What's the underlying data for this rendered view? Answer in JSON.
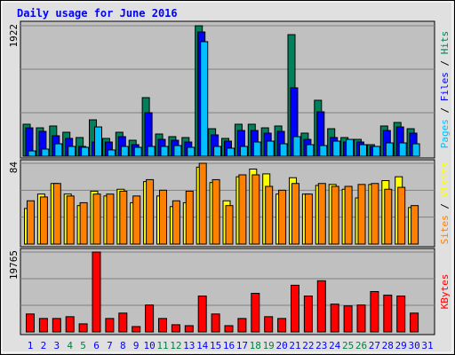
{
  "chart_data": [
    {
      "type": "bar",
      "title": "Daily usage for June 2016",
      "ylim": [
        0,
        1922
      ],
      "yticks": [
        1922
      ],
      "legend_separator": " / ",
      "series": [
        {
          "name": "Pages",
          "color": "#00c0ff",
          "values": [
            78,
            105,
            183,
            144,
            131,
            431,
            92,
            144,
            131,
            144,
            144,
            157,
            131,
            1687,
            144,
            118,
            144,
            209,
            222,
            183,
            288,
            170,
            157,
            222,
            248,
            170,
            144,
            196,
            196,
            183,
            0
          ]
        },
        {
          "name": "Files",
          "color": "#0000ff",
          "values": [
            418,
            366,
            301,
            262,
            144,
            209,
            209,
            288,
            170,
            641,
            248,
            235,
            209,
            1830,
            314,
            222,
            379,
            379,
            340,
            366,
            1007,
            248,
            654,
            275,
            209,
            209,
            144,
            379,
            431,
            340,
            0
          ]
        },
        {
          "name": "Hits",
          "color": "#00805c",
          "values": [
            471,
            418,
            445,
            353,
            275,
            536,
            262,
            353,
            235,
            863,
            327,
            288,
            275,
            1922,
            405,
            262,
            471,
            471,
            418,
            445,
            1791,
            340,
            824,
            405,
            275,
            248,
            170,
            445,
            497,
            405,
            0
          ]
        }
      ]
    },
    {
      "type": "bar",
      "ylim": [
        0,
        84
      ],
      "yticks": [
        84
      ],
      "legend_separator": " / ",
      "series": [
        {
          "name": "Sites",
          "color": "#ff8000",
          "values": [
            45,
            49,
            63,
            50,
            43,
            52,
            52,
            55,
            50,
            67,
            56,
            45,
            55,
            84,
            67,
            40,
            72,
            72,
            60,
            56,
            63,
            52,
            63,
            60,
            60,
            62,
            63,
            57,
            59,
            40,
            0
          ]
        },
        {
          "name": "Visits",
          "color": "#ffff00",
          "values": [
            37,
            52,
            63,
            52,
            40,
            55,
            50,
            57,
            43,
            65,
            50,
            39,
            43,
            80,
            64,
            45,
            70,
            78,
            73,
            52,
            69,
            52,
            61,
            62,
            57,
            48,
            62,
            66,
            70,
            38,
            0
          ]
        }
      ]
    },
    {
      "type": "bar",
      "ylim": [
        0,
        19765
      ],
      "yticks": [
        19765
      ],
      "categories": [
        "1",
        "2",
        "3",
        "4",
        "5",
        "6",
        "7",
        "8",
        "9",
        "10",
        "11",
        "12",
        "13",
        "14",
        "15",
        "16",
        "17",
        "18",
        "19",
        "20",
        "21",
        "22",
        "23",
        "24",
        "25",
        "26",
        "27",
        "28",
        "29",
        "30",
        "31"
      ],
      "label_colors": [
        "#0000ff",
        "#0000ff",
        "#0000ff",
        "#008040",
        "#008040",
        "#0000ff",
        "#0000ff",
        "#0000ff",
        "#0000ff",
        "#0000ff",
        "#008040",
        "#008040",
        "#0000ff",
        "#0000ff",
        "#0000ff",
        "#0000ff",
        "#0000ff",
        "#008040",
        "#008040",
        "#0000ff",
        "#0000ff",
        "#0000ff",
        "#0000ff",
        "#0000ff",
        "#008040",
        "#008040",
        "#0000ff",
        "#0000ff",
        "#0000ff",
        "#0000ff",
        "#0000ff"
      ],
      "series": [
        {
          "name": "KBytes",
          "color": "#ff0000",
          "values": [
            4440,
            3330,
            3330,
            3770,
            2000,
            19765,
            3330,
            4660,
            1330,
            6660,
            3330,
            1780,
            1550,
            8880,
            4440,
            1550,
            3330,
            9550,
            3770,
            3330,
            11550,
            8880,
            12660,
            6880,
            6440,
            6660,
            9990,
            9100,
            8880,
            4660,
            0
          ]
        }
      ]
    }
  ]
}
